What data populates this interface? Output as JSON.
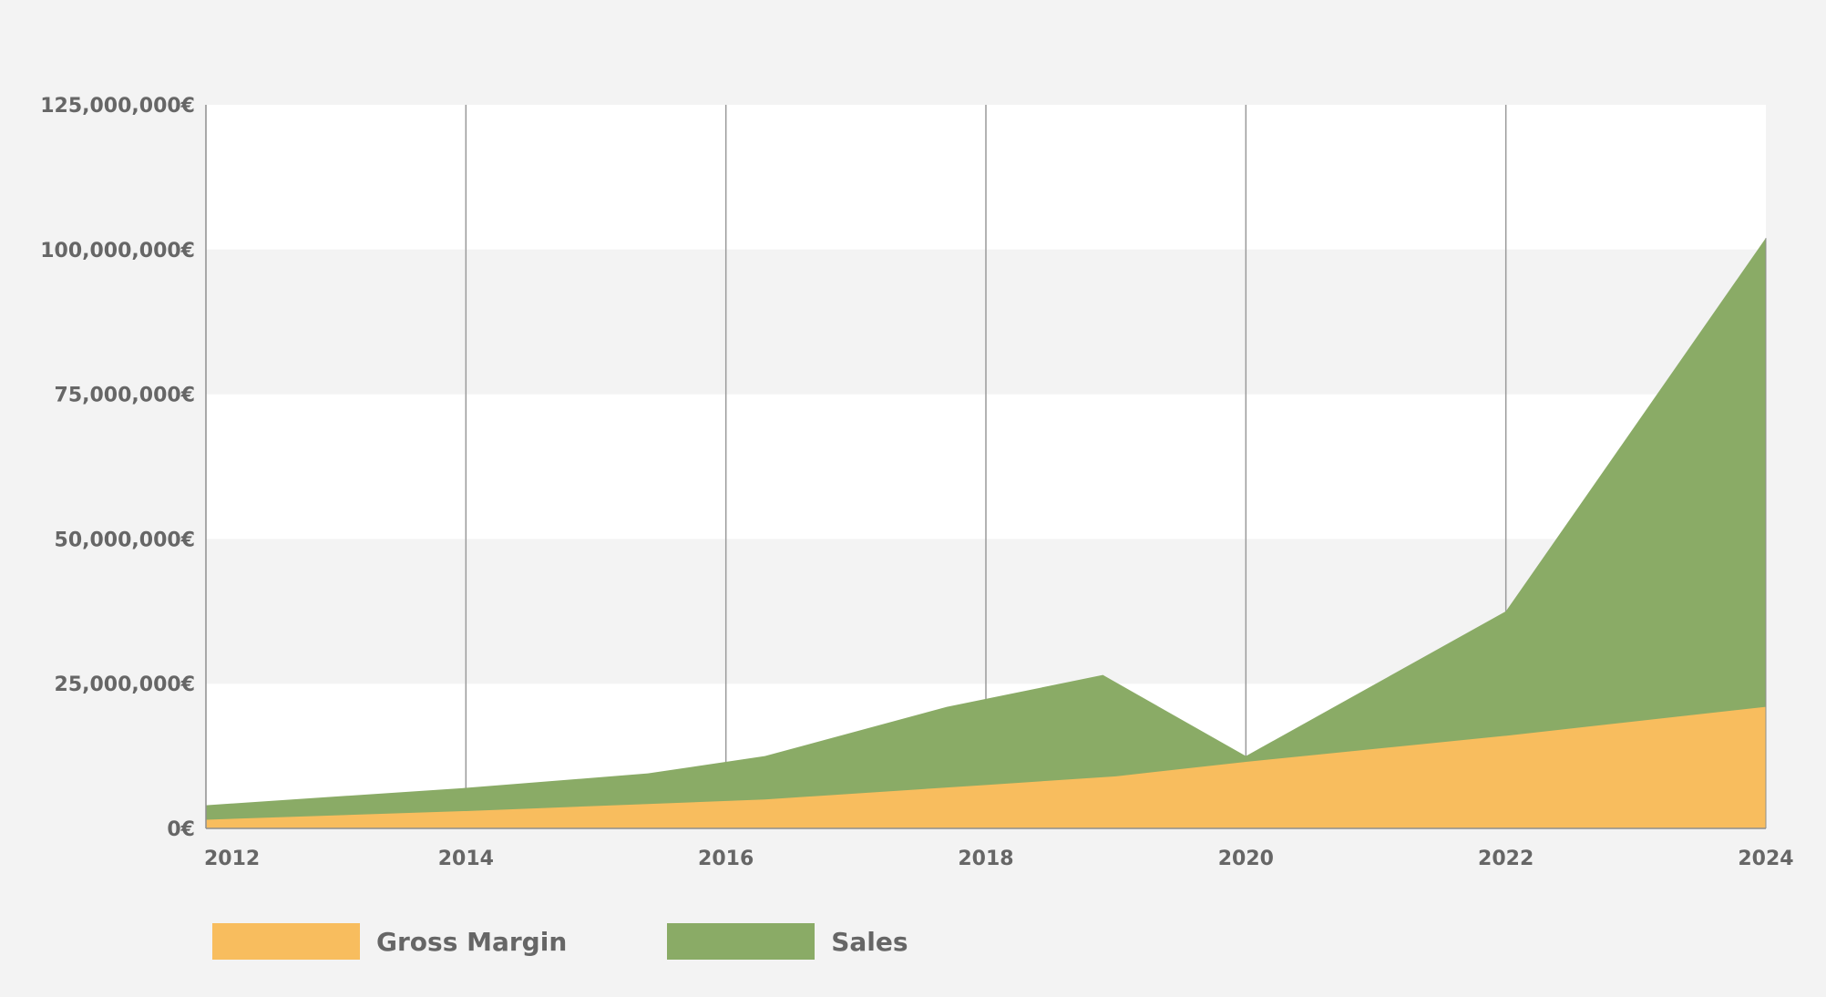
{
  "chart_data": {
    "type": "area",
    "title": "",
    "xlabel": "",
    "ylabel": "",
    "xlim": [
      2012,
      2024
    ],
    "ylim": [
      0,
      125000000
    ],
    "x_ticks": [
      2012,
      2014,
      2016,
      2018,
      2020,
      2022,
      2024
    ],
    "x_tick_labels": [
      "2012",
      "2014",
      "2016",
      "2018",
      "2020",
      "2022",
      "2024"
    ],
    "y_ticks": [
      0,
      25000000,
      50000000,
      75000000,
      100000000,
      125000000
    ],
    "y_tick_labels": [
      "0€",
      "25,000,000€",
      "50,000,000€",
      "75,000,000€",
      "100,000,000€",
      "125,000,000€"
    ],
    "grid": "vertical lines at even years, alternating horizontal bands",
    "legend_position": "bottom-left",
    "series": [
      {
        "name": "Gross Margin",
        "color": "#f8bd5e",
        "x": [
          2012,
          2014,
          2016.3,
          2018,
          2019,
          2020,
          2022,
          2024
        ],
        "values": [
          1500000,
          3000000,
          5000000,
          7500000,
          9000000,
          11500000,
          16000000,
          21000000
        ]
      },
      {
        "name": "Sales",
        "color": "#8aab66",
        "x": [
          2012,
          2014,
          2015.4,
          2016.3,
          2017.7,
          2018.9,
          2020,
          2022,
          2024
        ],
        "values": [
          4000000,
          7000000,
          9500000,
          12500000,
          21000000,
          26500000,
          12500000,
          37500000,
          102000000
        ]
      }
    ]
  },
  "legend": {
    "items": [
      {
        "label": "Gross Margin",
        "color": "#f8bd5e"
      },
      {
        "label": "Sales",
        "color": "#8aab66"
      }
    ]
  }
}
